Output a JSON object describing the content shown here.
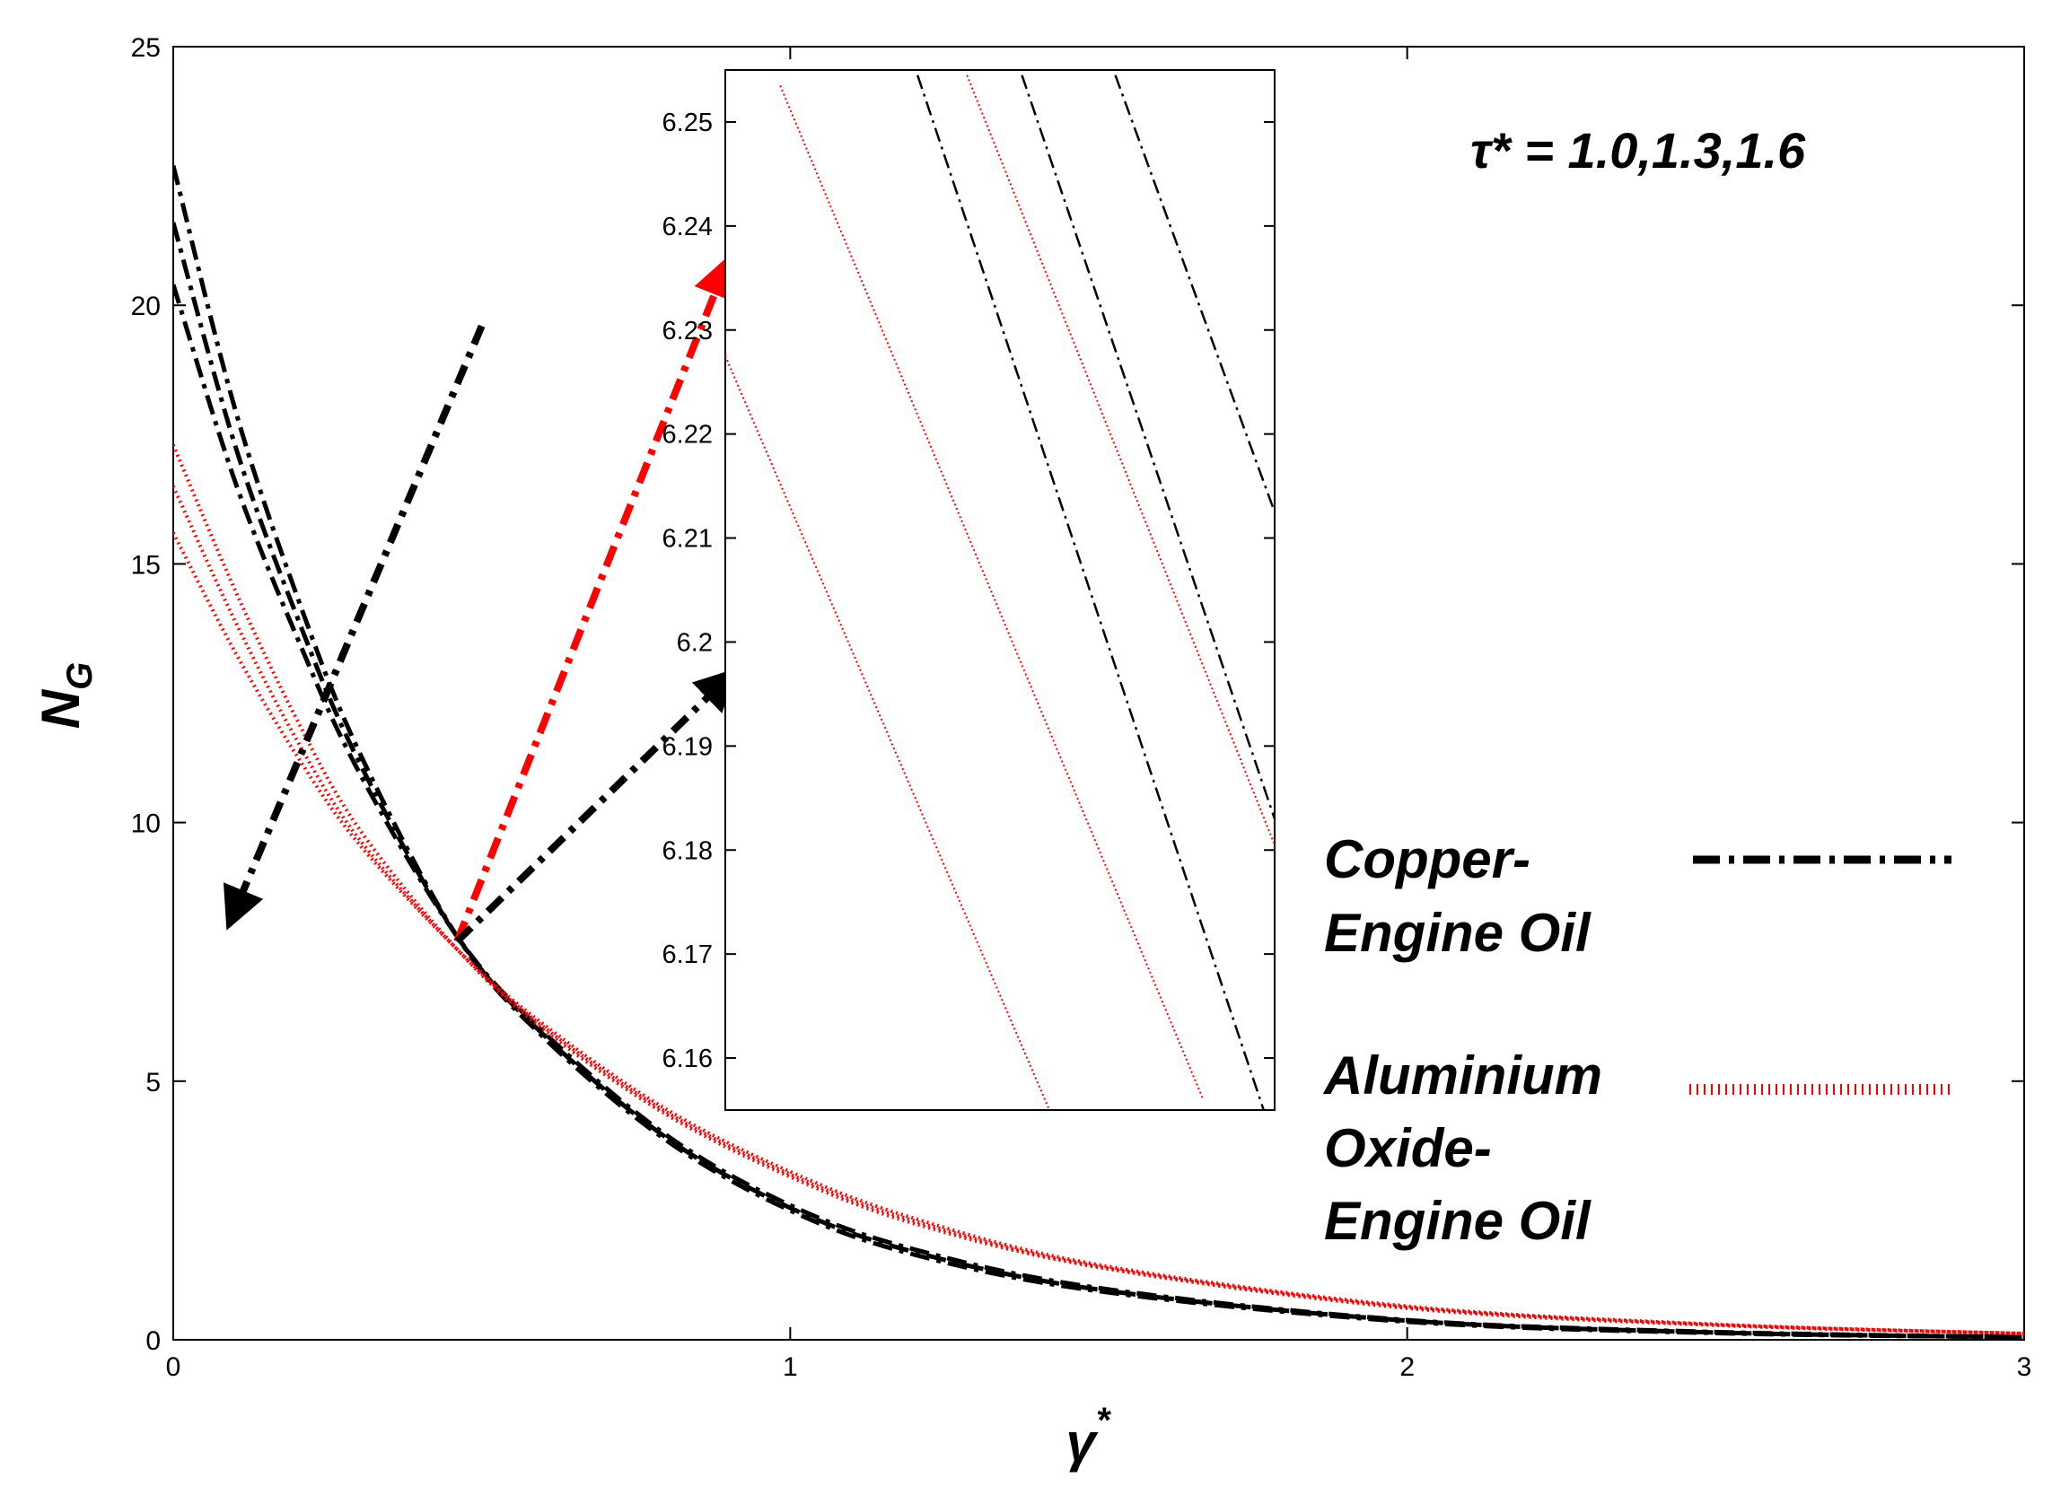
{
  "chart_data": [
    {
      "type": "line",
      "role": "main",
      "xlabel": "γ",
      "xlabel_superscript": "*",
      "ylabel": "N",
      "ylabel_subscript": "G",
      "xlim": [
        0,
        3
      ],
      "ylim": [
        0,
        25
      ],
      "x_ticks": [
        "0",
        "1",
        "2",
        "3"
      ],
      "y_ticks": [
        "0",
        "5",
        "10",
        "15",
        "20",
        "25"
      ],
      "grid": false,
      "legend_position": "right",
      "annotation": "τ* = 1.0,1.3,1.6",
      "parameter": "τ*",
      "parameter_values": [
        1.0,
        1.3,
        1.6
      ],
      "series": [
        {
          "name": "Copper-Engine Oil",
          "tau": 1.0,
          "color": "#000000",
          "style": "dash-dot",
          "x": [
            0,
            0.1,
            0.2,
            0.3,
            0.46,
            0.6,
            0.8,
            1.0,
            1.2,
            1.5,
            2.0,
            2.5,
            3.0
          ],
          "y": [
            20.4,
            16.6,
            13.6,
            11.0,
            7.8,
            5.95,
            3.95,
            2.6,
            1.75,
            1.0,
            0.38,
            0.15,
            0.05
          ]
        },
        {
          "name": "Copper-Engine Oil",
          "tau": 1.3,
          "color": "#000000",
          "style": "dash-dot",
          "x": [
            0,
            0.1,
            0.2,
            0.3,
            0.46,
            0.6,
            0.8,
            1.0,
            1.2,
            1.5,
            2.0,
            2.5,
            3.0
          ],
          "y": [
            21.6,
            17.3,
            14.0,
            11.2,
            7.8,
            5.9,
            3.9,
            2.55,
            1.7,
            0.97,
            0.37,
            0.14,
            0.05
          ]
        },
        {
          "name": "Copper-Engine Oil",
          "tau": 1.6,
          "color": "#000000",
          "style": "dash-dot",
          "x": [
            0,
            0.1,
            0.2,
            0.3,
            0.46,
            0.6,
            0.8,
            1.0,
            1.2,
            1.5,
            2.0,
            2.5,
            3.0
          ],
          "y": [
            22.7,
            18.0,
            14.4,
            11.4,
            7.8,
            5.85,
            3.85,
            2.5,
            1.65,
            0.94,
            0.35,
            0.13,
            0.05
          ]
        },
        {
          "name": "Aluminium Oxide-Engine Oil",
          "tau": 1.0,
          "color": "#ff0000",
          "style": "dotted",
          "x": [
            0,
            0.1,
            0.2,
            0.3,
            0.46,
            0.6,
            0.8,
            1.0,
            1.2,
            1.5,
            2.0,
            2.5,
            3.0
          ],
          "y": [
            15.6,
            13.3,
            11.3,
            9.6,
            7.55,
            6.1,
            4.45,
            3.25,
            2.35,
            1.45,
            0.65,
            0.3,
            0.12
          ]
        },
        {
          "name": "Aluminium Oxide-Engine Oil",
          "tau": 1.3,
          "color": "#ff0000",
          "style": "dotted",
          "x": [
            0,
            0.1,
            0.2,
            0.3,
            0.46,
            0.6,
            0.8,
            1.0,
            1.2,
            1.5,
            2.0,
            2.5,
            3.0
          ],
          "y": [
            16.5,
            13.9,
            11.6,
            9.7,
            7.55,
            6.05,
            4.4,
            3.2,
            2.3,
            1.42,
            0.63,
            0.29,
            0.12
          ]
        },
        {
          "name": "Aluminium Oxide-Engine Oil",
          "tau": 1.6,
          "color": "#ff0000",
          "style": "dotted",
          "x": [
            0,
            0.1,
            0.2,
            0.3,
            0.46,
            0.6,
            0.8,
            1.0,
            1.2,
            1.5,
            2.0,
            2.5,
            3.0
          ],
          "y": [
            17.3,
            14.5,
            12.0,
            9.9,
            7.55,
            6.0,
            4.35,
            3.15,
            2.25,
            1.4,
            0.61,
            0.28,
            0.12
          ]
        }
      ],
      "arrows": [
        {
          "color": "#000000",
          "from": [
            0.5,
            19.6
          ],
          "to": [
            0.1,
            8.3
          ]
        },
        {
          "color": "#ff0000",
          "from": [
            0.46,
            7.7
          ],
          "to": [
            0.89,
            20.6
          ]
        },
        {
          "color": "#000000",
          "from": [
            0.46,
            7.7
          ],
          "to": [
            0.89,
            12.7
          ]
        }
      ],
      "legend": [
        {
          "label_lines": [
            "Copper-",
            "Engine Oil"
          ],
          "color": "#000000",
          "style": "dash-dot"
        },
        {
          "label_lines": [
            "Aluminium",
            "Oxide-",
            "Engine Oil"
          ],
          "color": "#ff0000",
          "style": "dotted"
        }
      ]
    },
    {
      "type": "line",
      "role": "inset",
      "ylim": [
        6.155,
        6.255
      ],
      "y_ticks": [
        "6.16",
        "6.17",
        "6.18",
        "6.19",
        "6.2",
        "6.21",
        "6.22",
        "6.23",
        "6.24",
        "6.25"
      ],
      "xlim": [
        0,
        1
      ],
      "x_ticks": [],
      "series": [
        {
          "color": "#ff0000",
          "style": "dotted",
          "x": [
            0.0,
            0.59
          ],
          "y": [
            6.2275,
            6.155
          ]
        },
        {
          "color": "#ff0000",
          "style": "dotted",
          "x": [
            0.1,
            0.87
          ],
          "y": [
            6.2535,
            6.156
          ]
        },
        {
          "color": "#000000",
          "style": "dash-dot",
          "x": [
            0.35,
            0.98
          ],
          "y": [
            6.2545,
            6.155
          ]
        },
        {
          "color": "#ff0000",
          "style": "dotted",
          "x": [
            0.44,
            1.0
          ],
          "y": [
            6.2545,
            6.1805
          ]
        },
        {
          "color": "#000000",
          "style": "dash-dot",
          "x": [
            0.54,
            1.0
          ],
          "y": [
            6.2545,
            6.183
          ]
        },
        {
          "color": "#000000",
          "style": "dash-dot",
          "x": [
            0.71,
            1.0
          ],
          "y": [
            6.2545,
            6.2125
          ]
        }
      ]
    }
  ]
}
